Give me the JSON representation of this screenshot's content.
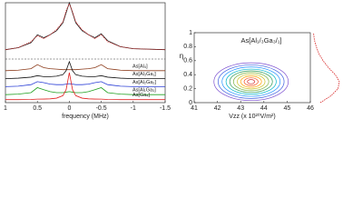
{
  "chart_data": [
    {
      "type": "line",
      "x_label": "frequency (MHz)",
      "x": [
        1,
        0.8,
        0.6,
        0.5,
        0.4,
        0.3,
        0.2,
        0.1,
        0.05,
        0,
        -0.05,
        -0.1,
        -0.2,
        -0.3,
        -0.4,
        -0.5,
        -0.6,
        -0.8,
        -1,
        -1.5
      ],
      "xlim": [
        1,
        -1.5
      ],
      "xticks": [
        1,
        0.5,
        0,
        -0.5,
        -1,
        -1.5
      ],
      "ylim": [
        0,
        10
      ],
      "series": [
        {
          "color": "#222222",
          "values": [
            5.3,
            5.5,
            6.0,
            6.8,
            6.5,
            6.8,
            7.2,
            8,
            9,
            10,
            9,
            8,
            7.2,
            6.8,
            6.5,
            6.9,
            6.2,
            5.6,
            5.4,
            5.3
          ]
        },
        {
          "color": "#d62020",
          "dashed": true,
          "values": [
            5.3,
            5.5,
            6.1,
            6.7,
            6.4,
            6.8,
            7.3,
            8.1,
            9.2,
            9.9,
            9.1,
            8.1,
            7.3,
            6.8,
            6.4,
            6.8,
            6.1,
            5.6,
            5.4,
            5.3
          ]
        },
        {
          "name": "As[Al₄]",
          "color": "#8b3a1a",
          "values": [
            3.2,
            3.25,
            3.4,
            3.8,
            3.5,
            3.4,
            3.35,
            3.3,
            3.3,
            3.3,
            3.3,
            3.3,
            3.35,
            3.4,
            3.5,
            3.8,
            3.4,
            3.25,
            3.2,
            3.2
          ]
        },
        {
          "name": "As[Al₃Ga₁]",
          "color": "#111111",
          "values": [
            2.4,
            2.45,
            2.55,
            2.7,
            2.6,
            2.6,
            2.65,
            2.8,
            3.2,
            4.1,
            3.2,
            2.8,
            2.65,
            2.6,
            2.6,
            2.7,
            2.55,
            2.45,
            2.4,
            2.4
          ]
        },
        {
          "name": "As[Al₂Ga₂]",
          "color": "#2b3fd6",
          "values": [
            1.6,
            1.65,
            1.8,
            2.1,
            2.0,
            1.85,
            1.8,
            1.8,
            1.85,
            1.9,
            1.85,
            1.8,
            1.8,
            1.85,
            2.0,
            2.1,
            1.8,
            1.65,
            1.6,
            1.6
          ]
        },
        {
          "name": "As[Al₁Ga₃]",
          "color": "#1fa01f",
          "values": [
            0.8,
            0.85,
            1.0,
            1.5,
            1.3,
            1.1,
            1.0,
            1.0,
            1.05,
            1.1,
            1.05,
            1.0,
            1.0,
            1.1,
            1.3,
            1.5,
            1.0,
            0.85,
            0.8,
            0.8
          ]
        },
        {
          "name": "As[Ga₄]",
          "color": "#e02020",
          "values": [
            0.3,
            0.3,
            0.32,
            0.35,
            0.36,
            0.38,
            0.45,
            0.7,
            1.3,
            3.0,
            1.3,
            0.7,
            0.45,
            0.38,
            0.36,
            0.35,
            0.32,
            0.3,
            0.3,
            0.3
          ]
        }
      ]
    },
    {
      "type": "contour",
      "title": "As[Al₁/₃Ga₃/₁]",
      "x_label": "Vzz (x 10²⁰V/m²)",
      "y_label": "η",
      "xlim": [
        41,
        46
      ],
      "xticks": [
        41,
        42,
        43,
        44,
        45,
        46
      ],
      "ylim": [
        0,
        1
      ],
      "yticks": [
        0,
        0.2,
        0.4,
        0.6,
        0.8,
        1
      ],
      "center": [
        43.45,
        0.3
      ],
      "contours": [
        {
          "color": "#7b4fd0",
          "radii": [
            1.6,
            0.27
          ]
        },
        {
          "color": "#3f5fe0",
          "radii": [
            1.42,
            0.24
          ]
        },
        {
          "color": "#1e90ff",
          "radii": [
            1.25,
            0.21
          ]
        },
        {
          "color": "#00b5c8",
          "radii": [
            1.08,
            0.18
          ]
        },
        {
          "color": "#2e9b57",
          "radii": [
            0.92,
            0.155
          ]
        },
        {
          "color": "#7cb342",
          "radii": [
            0.76,
            0.13
          ]
        },
        {
          "color": "#c8c020",
          "radii": [
            0.6,
            0.105
          ]
        },
        {
          "color": "#ffa000",
          "radii": [
            0.45,
            0.08
          ]
        },
        {
          "color": "#f4511e",
          "radii": [
            0.3,
            0.055
          ]
        },
        {
          "color": "#d32f2f",
          "radii": [
            0.16,
            0.03
          ]
        }
      ],
      "marginal": {
        "color": "#d62020",
        "eta": [
          0,
          0.1,
          0.2,
          0.3,
          0.4,
          0.5,
          0.6,
          0.7,
          0.8,
          0.9,
          1
        ],
        "density": [
          0.3,
          0.7,
          0.95,
          1,
          0.85,
          0.6,
          0.4,
          0.25,
          0.15,
          0.08,
          0.05
        ],
        "lim": [
          0,
          1
        ]
      }
    }
  ]
}
